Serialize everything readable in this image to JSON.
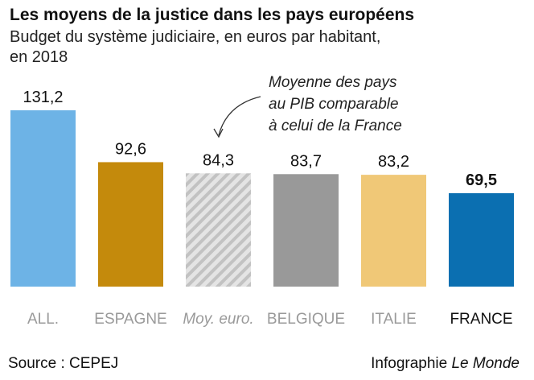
{
  "chart_data": {
    "type": "bar",
    "title": "Les moyens de la justice dans les pays européens",
    "subtitle": [
      "Budget du système judiciaire, en euros par habitant,",
      "en 2018"
    ],
    "categories": [
      "ALL.",
      "ESPAGNE",
      "Moy. euro.",
      "BELGIQUE",
      "ITALIE",
      "FRANCE"
    ],
    "values": [
      131.2,
      92.6,
      84.3,
      83.7,
      83.2,
      69.5
    ],
    "value_labels": [
      "131,2",
      "92,6",
      "84,3",
      "83,7",
      "83,2",
      "69,5"
    ],
    "colors": [
      "#6db3e6",
      "#c48a0c",
      "#c8c8c8",
      "#999999",
      "#f0c877",
      "#0b6fb1"
    ],
    "hatched": [
      false,
      false,
      true,
      false,
      false,
      false
    ],
    "highlight_index": 5,
    "annotation": [
      "Moyenne des pays",
      "au PIB comparable",
      "à celui de la France"
    ],
    "source": "Source : CEPEJ",
    "credit": [
      "Infographie",
      "Le Monde"
    ]
  }
}
